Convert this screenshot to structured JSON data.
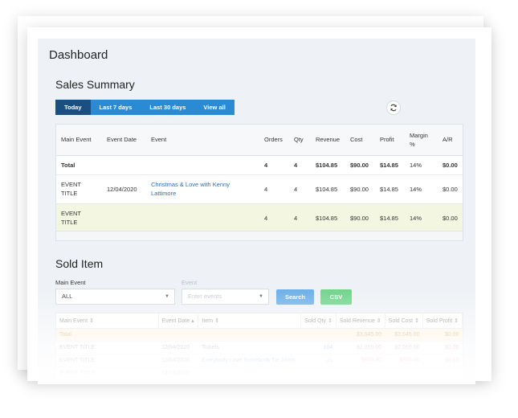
{
  "page": {
    "title": "Dashboard"
  },
  "sales_summary": {
    "title": "Sales Summary",
    "tabs": [
      {
        "label": "Today",
        "active": true
      },
      {
        "label": "Last 7 days",
        "active": false
      },
      {
        "label": "Last 30 days",
        "active": false
      },
      {
        "label": "View all",
        "active": false
      }
    ],
    "refresh_icon": "refresh-icon",
    "headers": [
      "Main Event",
      "Event Date",
      "Event",
      "Orders",
      "Qty",
      "Revenue",
      "Cost",
      "Profit",
      "Margin %",
      "A/R"
    ],
    "total_row": {
      "label": "Total",
      "orders": "4",
      "qty": "4",
      "revenue": "$104.85",
      "cost": "$90.00",
      "profit": "$14.85",
      "margin": "14%",
      "ar": "$0.00"
    },
    "rows": [
      {
        "main_event": "EVENT TITLE",
        "event_date": "12/04/2020",
        "event": "Christmas & Love with Kenny Lattimore",
        "orders": "4",
        "qty": "4",
        "revenue": "$104.85",
        "cost": "$90.00",
        "profit": "$14.85",
        "margin": "14%",
        "ar": "$0.00"
      },
      {
        "main_event": "EVENT TITLE",
        "event_date": "",
        "event": "",
        "orders": "4",
        "qty": "4",
        "revenue": "$104.85",
        "cost": "$90.00",
        "profit": "$14.85",
        "margin": "14%",
        "ar": "$0.00"
      }
    ]
  },
  "sold_item": {
    "title": "Sold Item",
    "main_event_label": "Main Event",
    "main_event_value": "ALL",
    "event_label": "Event",
    "event_placeholder": "Enter events",
    "search_label": "Search",
    "csv_label": "CSV",
    "colors": {
      "search": "#6aaee8",
      "csv": "#6fd38a"
    },
    "headers": [
      "Main Event",
      "Event Date",
      "Item",
      "Sold Qty",
      "Sold Revenue",
      "Sold Cost",
      "Sold Profit"
    ],
    "rows": [
      {
        "main_event": "Total",
        "event_date": "",
        "item": "",
        "qty": "",
        "revenue": "$3,645.00",
        "cost": "$3,645.00",
        "profit": "$0.00"
      },
      {
        "main_event": "EVENT TITLE",
        "event_date": "12/04/2020",
        "item": "Tickets",
        "qty": "104",
        "revenue": "$2,010.00",
        "cost": "$2,010.00",
        "profit": "$0.00"
      },
      {
        "main_event": "EVENT TITLE",
        "event_date": "12/04/2020",
        "item": "Everybody Love Somebody Tie Shirts",
        "qty": "21",
        "revenue": "$600.00",
        "cost": "$600.00",
        "profit": "$0.00"
      },
      {
        "main_event": "EVENT TITLE",
        "event_date": "12/04/2020",
        "item": "",
        "qty": "",
        "revenue": "",
        "cost": "",
        "profit": ""
      }
    ]
  }
}
